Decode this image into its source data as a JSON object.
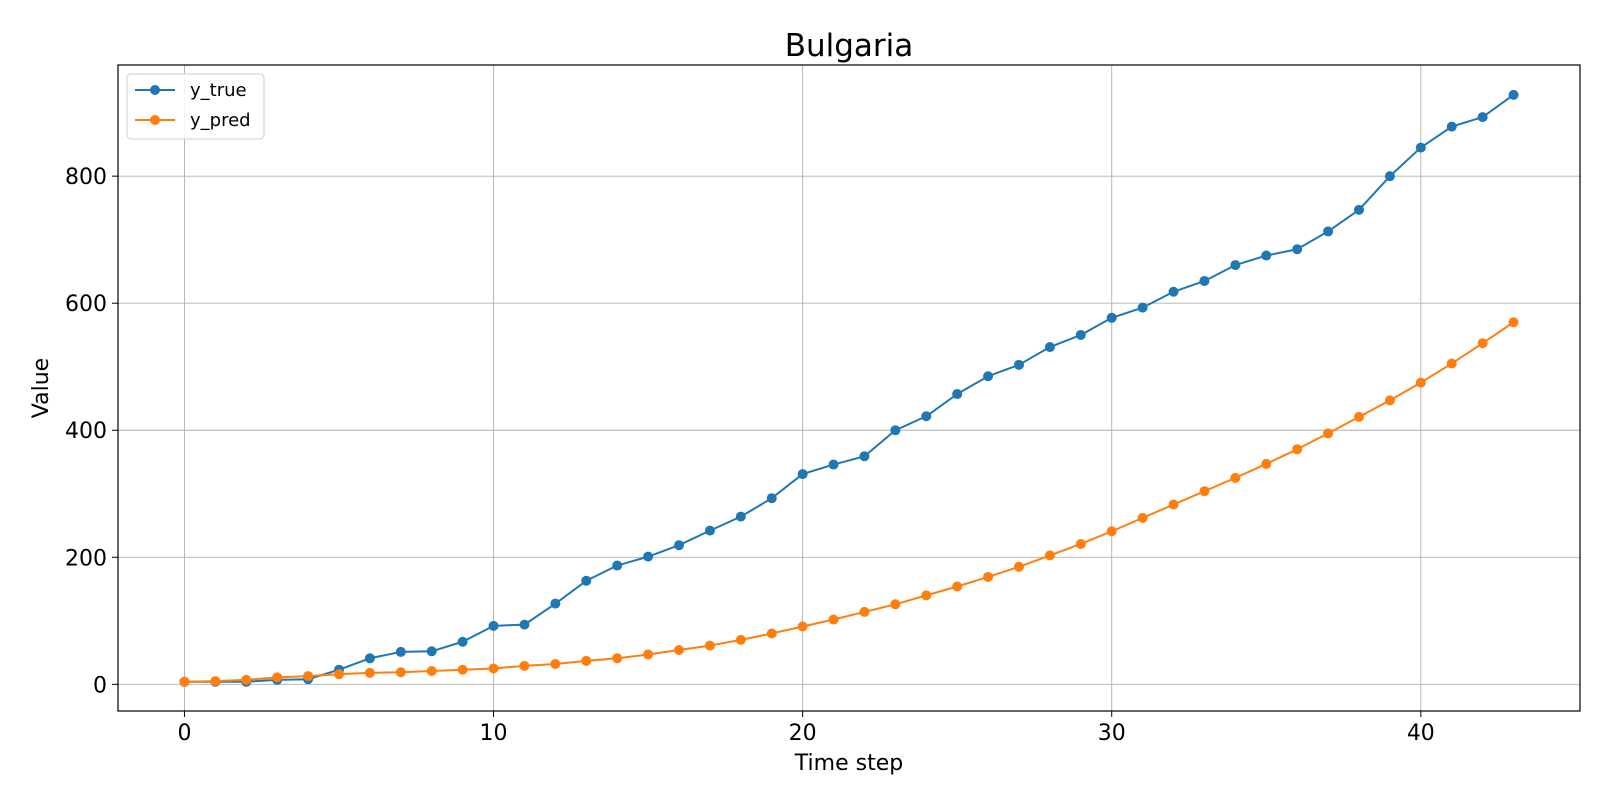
{
  "chart_data": {
    "type": "line",
    "title": "Bulgaria",
    "xlabel": "Time step",
    "ylabel": "Value",
    "xlim": [
      -2.15,
      45.15
    ],
    "ylim": [
      -42,
      975
    ],
    "x_ticks": [
      0,
      10,
      20,
      30,
      40
    ],
    "y_ticks": [
      0,
      200,
      400,
      600,
      800
    ],
    "grid": true,
    "legend_position": "upper left",
    "x": [
      0,
      1,
      2,
      3,
      4,
      5,
      6,
      7,
      8,
      9,
      10,
      11,
      12,
      13,
      14,
      15,
      16,
      17,
      18,
      19,
      20,
      21,
      22,
      23,
      24,
      25,
      26,
      27,
      28,
      29,
      30,
      31,
      32,
      33,
      34,
      35,
      36,
      37,
      38,
      39,
      40,
      41,
      42,
      43
    ],
    "series": [
      {
        "name": "y_true",
        "color": "#1f77b4",
        "values": [
          4,
          4,
          4,
          7,
          8,
          23,
          41,
          51,
          52,
          67,
          92,
          94,
          127,
          163,
          187,
          201,
          219,
          242,
          264,
          293,
          331,
          346,
          359,
          400,
          422,
          457,
          485,
          503,
          531,
          550,
          577,
          593,
          618,
          635,
          660,
          675,
          685,
          713,
          747,
          800,
          845,
          878,
          893,
          928
        ]
      },
      {
        "name": "y_pred",
        "color": "#ff7f0e",
        "values": [
          4,
          5,
          7,
          11,
          13,
          16,
          18,
          19,
          21,
          23,
          25,
          29,
          32,
          37,
          41,
          47,
          54,
          61,
          70,
          80,
          91,
          102,
          114,
          126,
          140,
          154,
          169,
          185,
          203,
          221,
          241,
          262,
          283,
          304,
          325,
          347,
          370,
          395,
          421,
          447,
          475,
          505,
          537,
          570
        ]
      }
    ]
  }
}
